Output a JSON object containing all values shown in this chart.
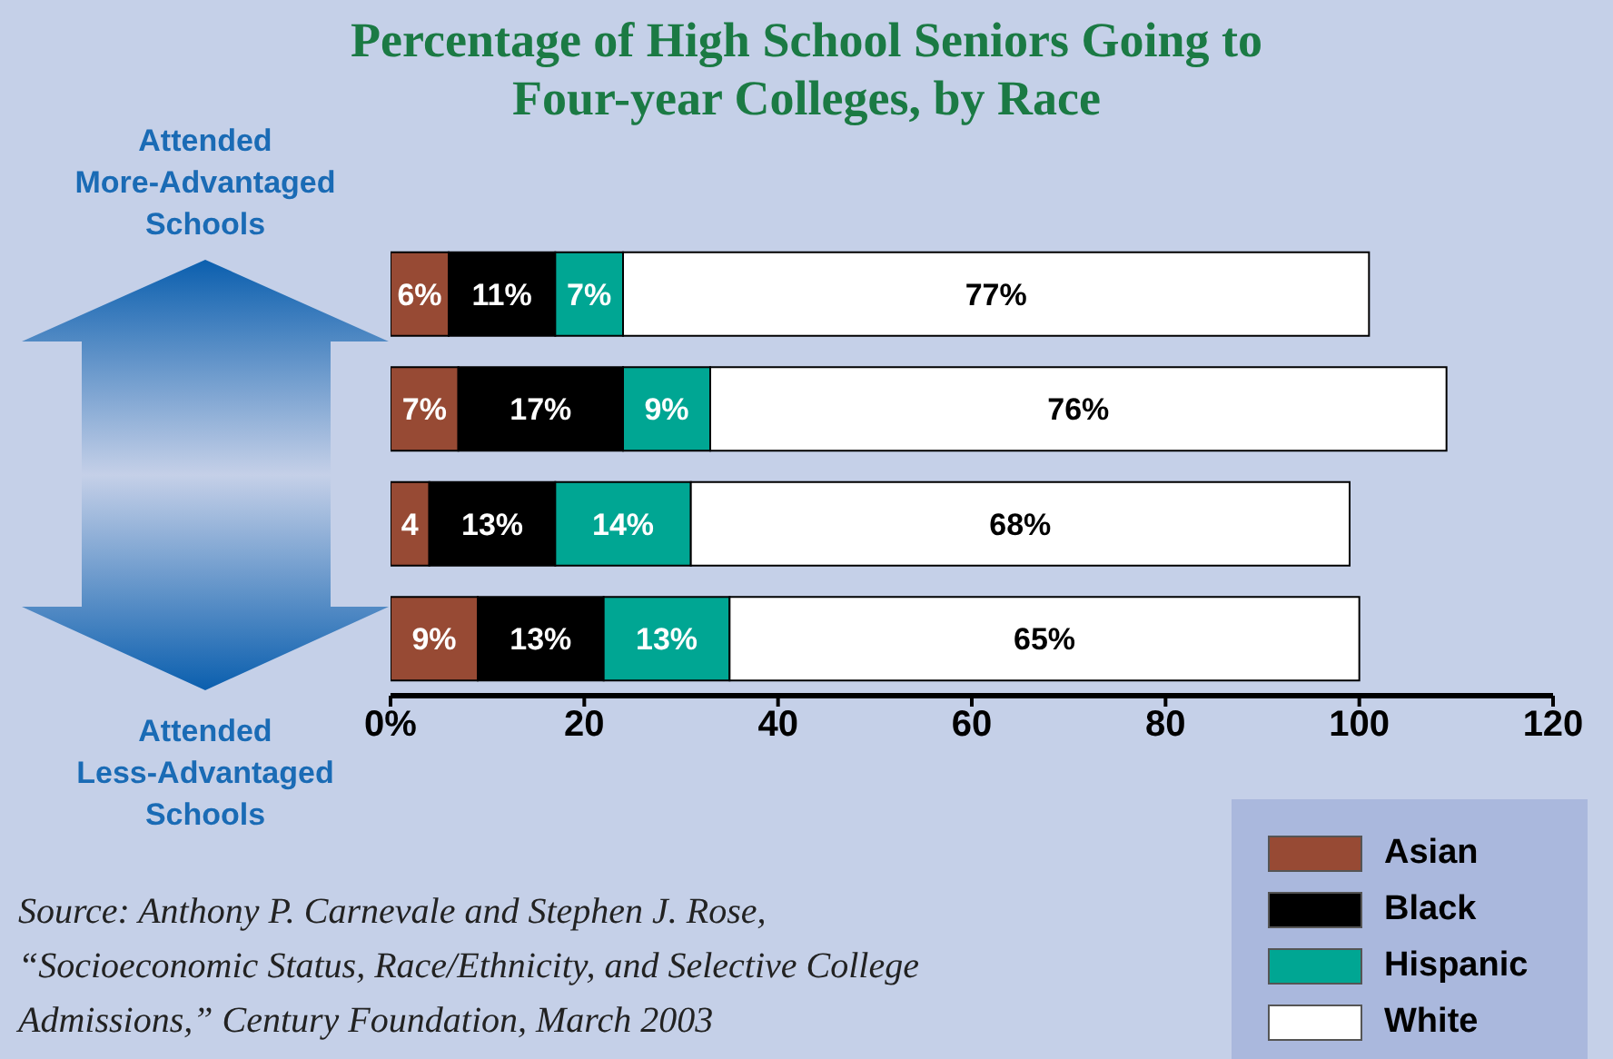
{
  "chart_data": {
    "type": "bar",
    "orientation": "horizontal",
    "stacked": true,
    "title": "Percentage of High School Seniors Going to\nFour-year Colleges, by Race",
    "annotations": [
      "Attended More-Advantaged Schools",
      "Attended Less-Advantaged Schools",
      "Source: Anthony P. Carnevale and Stephen J. Rose,\n“Socioeconomic Status, Race/Ethnicity, and Selective College\nAdmissions,” Century Foundation, March 2003"
    ],
    "categories": [
      null,
      null,
      null,
      null
    ],
    "series": [
      {
        "name": "Asian",
        "color": "#974a34",
        "values": [
          6,
          7,
          4,
          9
        ],
        "value_labels": [
          "6%",
          "7%",
          "4",
          "9%"
        ]
      },
      {
        "name": "Black",
        "color": "#000000",
        "values": [
          11,
          17,
          13,
          13
        ],
        "value_labels": [
          "11%",
          "17%",
          "13%",
          "13%"
        ]
      },
      {
        "name": "Hispanic",
        "color": "#00a693",
        "values": [
          7,
          9,
          14,
          13
        ],
        "value_labels": [
          "7%",
          "9%",
          "14%",
          "13%"
        ]
      },
      {
        "name": "White",
        "color": "#ffffff",
        "values": [
          77,
          76,
          68,
          65
        ],
        "value_labels": [
          "77%",
          "76%",
          "68%",
          "65%"
        ]
      }
    ],
    "xlim": [
      0,
      120
    ],
    "xticks": [
      {
        "value": 0,
        "label": "0%"
      },
      20,
      40,
      60,
      80,
      100,
      120
    ],
    "grid": false,
    "legend": "bottom right"
  }
}
